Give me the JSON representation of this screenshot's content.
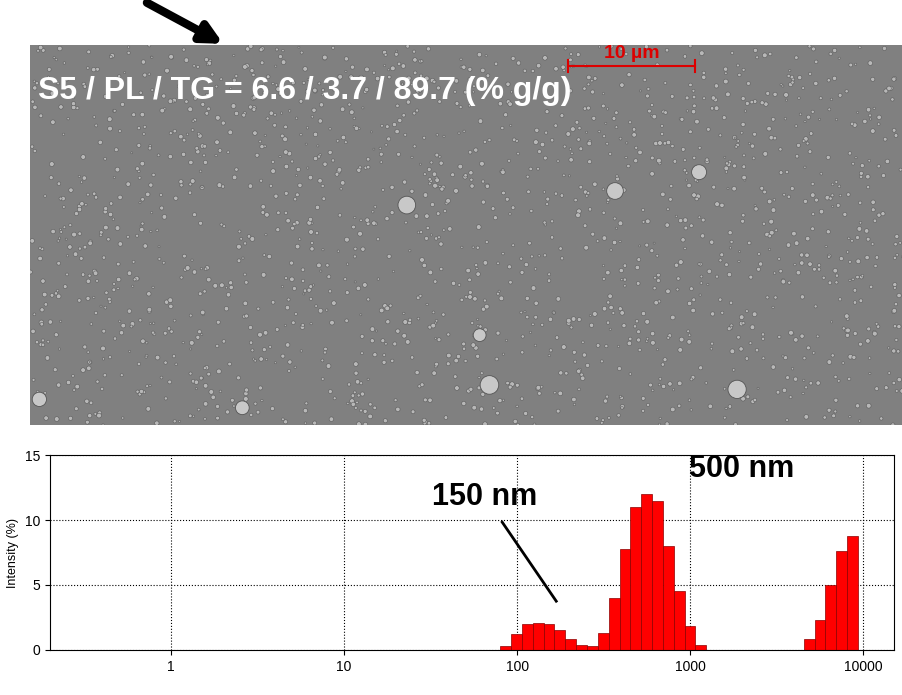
{
  "micrograph": {
    "title": "S5 / PL / TG = 6.6 / 3.7 / 89.7 (% g/g)",
    "scale_bar": "10 µm"
  },
  "chart_data": {
    "type": "histogram",
    "y_label": "Intensity (%)",
    "bins": [
      80,
      92.4,
      106.7,
      123.2,
      142.3,
      164.4,
      189.9,
      219.3,
      253.3,
      292.5,
      337.9,
      390.2,
      450.7,
      520.5,
      601.2,
      694.4,
      802,
      926.3,
      1069.8,
      1235.6,
      1427.1,
      1648.3,
      1903.7,
      2198.7,
      2539.4,
      2933,
      3387.5,
      3912.4,
      4518.7,
      5218.9,
      6027.6,
      6961.7,
      8040.5,
      9286.5
    ],
    "counts": [
      0.3,
      1.2,
      2.0,
      2.1,
      2.0,
      1.5,
      0.8,
      0.4,
      0.3,
      1.3,
      4.0,
      7.8,
      11.0,
      12.0,
      11.5,
      8.0,
      4.5,
      1.8,
      0.4,
      0,
      0,
      0,
      0,
      0,
      0,
      0,
      0,
      0,
      0.8,
      2.3,
      5.0,
      7.6,
      8.8
    ],
    "color": "#ff0000",
    "log": "x",
    "xlim": [
      0.2,
      15000
    ],
    "xticks": [
      1,
      10,
      100,
      1000,
      10000
    ],
    "ylim": [
      0,
      15
    ],
    "yticks": [
      0,
      5,
      10,
      15
    ],
    "grid": true,
    "annotations": [
      "150 nm",
      "500 nm"
    ]
  }
}
